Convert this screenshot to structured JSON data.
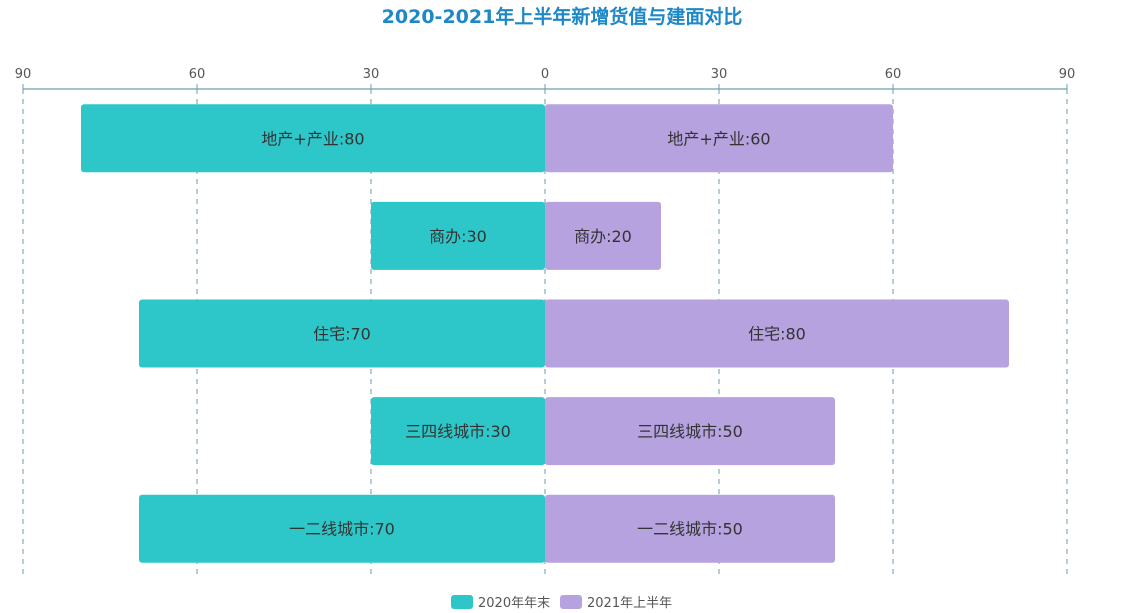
{
  "chart_data": {
    "type": "bar",
    "orientation": "horizontal",
    "layout": "butterfly",
    "title": "2020-2021年上半年新增货值与建面对比",
    "categories": [
      "地产+产业",
      "商办",
      "住宅",
      "三四线城市",
      "一二线城市"
    ],
    "series": [
      {
        "name": "2020年年末",
        "color": "#2ec7c9",
        "side": "left",
        "values": [
          80,
          30,
          70,
          30,
          70
        ]
      },
      {
        "name": "2021年上半年",
        "color": "#b6a2de",
        "side": "right",
        "values": [
          60,
          20,
          80,
          50,
          50
        ]
      }
    ],
    "left_ticks": [
      "90",
      "60",
      "30",
      "0"
    ],
    "right_ticks": [
      "0",
      "30",
      "60",
      "90"
    ],
    "xlim": [
      0,
      90
    ],
    "grid": "dashed vertical",
    "legend_position": "bottom-center",
    "axis_position": "top"
  }
}
